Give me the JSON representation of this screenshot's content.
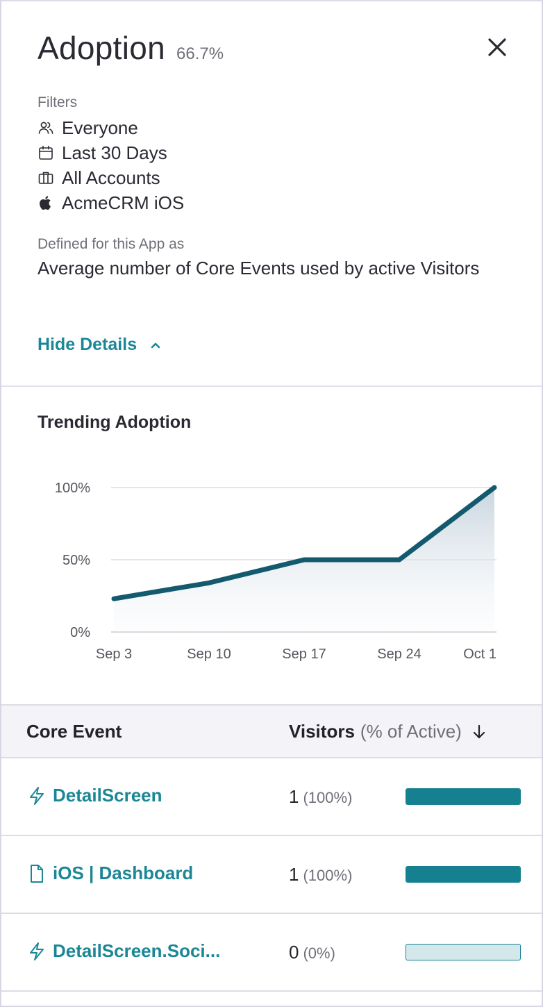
{
  "header": {
    "title": "Adoption",
    "percentage": "66.7%"
  },
  "filters": {
    "label": "Filters",
    "items": [
      {
        "icon": "people-icon",
        "label": "Everyone"
      },
      {
        "icon": "calendar-icon",
        "label": "Last 30 Days"
      },
      {
        "icon": "briefcase-icon",
        "label": "All Accounts"
      },
      {
        "icon": "apple-icon",
        "label": "AcmeCRM iOS"
      }
    ]
  },
  "definition": {
    "label": "Defined for this App as",
    "text": "Average number of Core Events used by active Visitors"
  },
  "toggle": {
    "label": "Hide Details"
  },
  "chart_section": {
    "title": "Trending Adoption"
  },
  "chart_data": {
    "type": "area",
    "title": "Trending Adoption",
    "categories": [
      "Sep 3",
      "Sep 10",
      "Sep 17",
      "Sep 24",
      "Oct 1"
    ],
    "values": [
      23,
      34,
      50,
      50,
      100
    ],
    "yticks": [
      "100%",
      "50%",
      "0%"
    ],
    "ylim": [
      0,
      100
    ],
    "grid": true,
    "line_color": "#145a6e",
    "fill_color": "#dfe6ec"
  },
  "table": {
    "header": {
      "event_label": "Core Event",
      "visitors_label": "Visitors",
      "visitors_sub": "(% of Active)"
    },
    "rows": [
      {
        "icon": "bolt-icon",
        "name": "DetailScreen",
        "count": "1",
        "pct": "(100%)",
        "fraction": 1.0
      },
      {
        "icon": "page-icon",
        "name": "iOS | Dashboard",
        "count": "1",
        "pct": "(100%)",
        "fraction": 1.0
      },
      {
        "icon": "bolt-icon",
        "name": "DetailScreen.Soci...",
        "count": "0",
        "pct": "(0%)",
        "fraction": 0.0
      }
    ]
  },
  "colors": {
    "accent": "#1b8796",
    "bar_fill": "#15808f",
    "bar_empty": "#d4e7ea"
  }
}
